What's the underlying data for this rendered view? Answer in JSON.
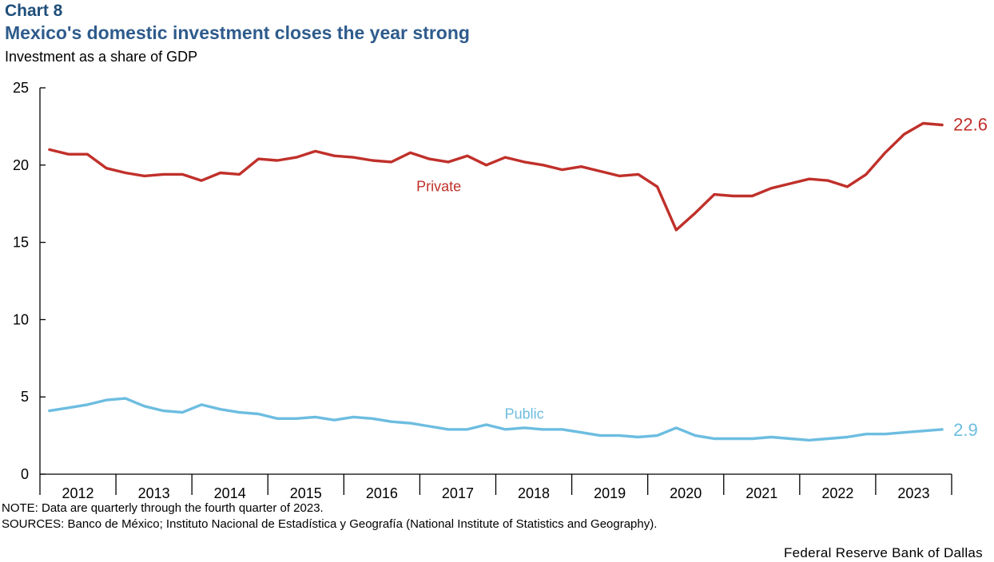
{
  "header": {
    "chart_number": "Chart 8",
    "title": "Mexico's domestic investment closes the year strong",
    "y_axis_title": "Investment as a share of GDP"
  },
  "footer": {
    "note": "NOTE: Data are quarterly through the fourth quarter of 2023.",
    "sources": "SOURCES: Banco de México; Instituto Nacional de Estadística y Geografía (National Institute of Statistics and Geography).",
    "credit": "Federal Reserve Bank of Dallas"
  },
  "colors": {
    "private": "#c0302a",
    "public": "#6cbde0",
    "axis": "#000000",
    "title": "#2e5b8c"
  },
  "chart_data": {
    "type": "line",
    "title": "Mexico's domestic investment closes the year strong",
    "ylabel": "Investment as a share of GDP",
    "xlabel": "",
    "ylim": [
      0,
      25
    ],
    "yticks": [
      0,
      5,
      10,
      15,
      20,
      25
    ],
    "grid": false,
    "years": [
      "2012",
      "2013",
      "2014",
      "2015",
      "2016",
      "2017",
      "2018",
      "2019",
      "2020",
      "2021",
      "2022",
      "2023"
    ],
    "frequency": "quarterly",
    "series": [
      {
        "name": "Private",
        "label": "Private",
        "end_label": "22.6",
        "values": [
          21.0,
          20.7,
          20.7,
          19.8,
          19.5,
          19.3,
          19.4,
          19.4,
          19.0,
          19.5,
          19.4,
          20.4,
          20.3,
          20.5,
          20.9,
          20.6,
          20.5,
          20.3,
          20.2,
          20.8,
          20.4,
          20.2,
          20.6,
          20.0,
          20.5,
          20.2,
          20.0,
          19.7,
          19.9,
          19.6,
          19.3,
          19.4,
          18.6,
          15.8,
          16.9,
          18.1,
          18.0,
          18.0,
          18.5,
          18.8,
          19.1,
          19.0,
          18.6,
          19.4,
          20.8,
          22.0,
          22.7,
          22.6
        ]
      },
      {
        "name": "Public",
        "label": "Public",
        "end_label": "2.9",
        "values": [
          4.1,
          4.3,
          4.5,
          4.8,
          4.9,
          4.4,
          4.1,
          4.0,
          4.5,
          4.2,
          4.0,
          3.9,
          3.6,
          3.6,
          3.7,
          3.5,
          3.7,
          3.6,
          3.4,
          3.3,
          3.1,
          2.9,
          2.9,
          3.2,
          2.9,
          3.0,
          2.9,
          2.9,
          2.7,
          2.5,
          2.5,
          2.4,
          2.5,
          3.0,
          2.5,
          2.3,
          2.3,
          2.3,
          2.4,
          2.3,
          2.2,
          2.3,
          2.4,
          2.6,
          2.6,
          2.7,
          2.8,
          2.9
        ]
      }
    ]
  }
}
